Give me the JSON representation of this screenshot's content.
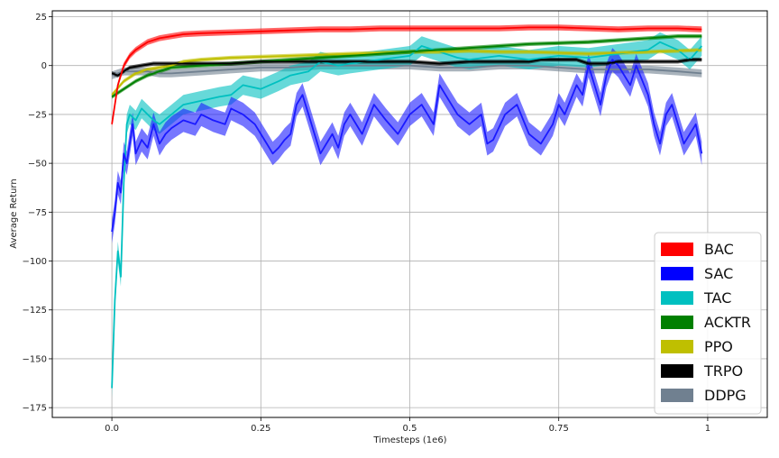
{
  "chart_data": {
    "type": "line",
    "title": "",
    "xlabel": "Timesteps (1e6)",
    "ylabel": "Average Return",
    "xlim": [
      -0.1,
      1.1
    ],
    "ylim": [
      -180,
      28
    ],
    "xticks": [
      0.0,
      0.25,
      0.5,
      0.75,
      1.0
    ],
    "xtick_labels": [
      "0.0",
      "0.25",
      "0.5",
      "0.75",
      "1"
    ],
    "yticks": [
      25,
      0,
      -25,
      -50,
      -75,
      -100,
      -125,
      -150,
      -175
    ],
    "ytick_labels": [
      "25",
      "0",
      "−25",
      "−50",
      "−75",
      "−100",
      "−125",
      "−150",
      "−175"
    ],
    "grid": true,
    "legend_position": "bottom-right",
    "series": [
      {
        "name": "DDPG",
        "color": "#708090",
        "x": [
          0.0,
          0.01,
          0.02,
          0.04,
          0.06,
          0.08,
          0.1,
          0.15,
          0.2,
          0.25,
          0.3,
          0.35,
          0.4,
          0.45,
          0.5,
          0.55,
          0.6,
          0.65,
          0.7,
          0.75,
          0.8,
          0.85,
          0.9,
          0.95,
          0.99
        ],
        "y": [
          -5,
          -4,
          -3,
          -3,
          -3,
          -4,
          -4,
          -3,
          -2,
          -1,
          -1,
          0,
          0,
          0,
          0,
          -1,
          -1,
          0,
          0,
          -1,
          -2,
          -2,
          -2,
          -3,
          -4
        ],
        "band": 2
      },
      {
        "name": "TAC",
        "color": "#00c0c0",
        "x": [
          0.0,
          0.005,
          0.01,
          0.015,
          0.02,
          0.025,
          0.03,
          0.04,
          0.05,
          0.06,
          0.07,
          0.08,
          0.1,
          0.12,
          0.15,
          0.18,
          0.2,
          0.22,
          0.25,
          0.28,
          0.3,
          0.33,
          0.35,
          0.38,
          0.4,
          0.45,
          0.5,
          0.52,
          0.55,
          0.58,
          0.6,
          0.65,
          0.7,
          0.75,
          0.8,
          0.85,
          0.9,
          0.92,
          0.95,
          0.97,
          0.99
        ],
        "y": [
          -165,
          -120,
          -95,
          -108,
          -60,
          -30,
          -25,
          -28,
          -22,
          -25,
          -28,
          -30,
          -25,
          -20,
          -18,
          -16,
          -15,
          -10,
          -12,
          -8,
          -5,
          -3,
          2,
          0,
          1,
          3,
          5,
          10,
          7,
          4,
          3,
          5,
          3,
          5,
          4,
          6,
          8,
          12,
          8,
          3,
          10
        ],
        "band": 5
      },
      {
        "name": "SAC",
        "color": "#1a1aff",
        "x": [
          0.0,
          0.005,
          0.01,
          0.015,
          0.02,
          0.025,
          0.03,
          0.035,
          0.04,
          0.05,
          0.06,
          0.07,
          0.08,
          0.09,
          0.1,
          0.12,
          0.14,
          0.15,
          0.17,
          0.19,
          0.2,
          0.22,
          0.24,
          0.25,
          0.26,
          0.27,
          0.28,
          0.29,
          0.3,
          0.31,
          0.32,
          0.33,
          0.34,
          0.35,
          0.36,
          0.37,
          0.38,
          0.39,
          0.4,
          0.42,
          0.44,
          0.46,
          0.48,
          0.5,
          0.52,
          0.54,
          0.55,
          0.56,
          0.58,
          0.6,
          0.62,
          0.63,
          0.64,
          0.66,
          0.68,
          0.7,
          0.72,
          0.74,
          0.75,
          0.76,
          0.78,
          0.79,
          0.8,
          0.81,
          0.82,
          0.83,
          0.84,
          0.85,
          0.86,
          0.87,
          0.88,
          0.9,
          0.91,
          0.92,
          0.93,
          0.94,
          0.95,
          0.96,
          0.97,
          0.98,
          0.99
        ],
        "y": [
          -85,
          -75,
          -60,
          -65,
          -45,
          -50,
          -40,
          -30,
          -45,
          -38,
          -42,
          -30,
          -40,
          -35,
          -32,
          -28,
          -30,
          -25,
          -28,
          -30,
          -22,
          -25,
          -30,
          -35,
          -40,
          -45,
          -42,
          -38,
          -35,
          -20,
          -15,
          -25,
          -35,
          -45,
          -40,
          -35,
          -42,
          -30,
          -25,
          -35,
          -20,
          -28,
          -35,
          -25,
          -20,
          -30,
          -10,
          -15,
          -25,
          -30,
          -25,
          -40,
          -38,
          -25,
          -20,
          -35,
          -40,
          -30,
          -20,
          -25,
          -10,
          -15,
          0,
          -10,
          -20,
          -5,
          3,
          0,
          -5,
          -10,
          0,
          -15,
          -30,
          -40,
          -25,
          -20,
          -30,
          -40,
          -35,
          -30,
          -45
        ],
        "band": 6
      },
      {
        "name": "PPO",
        "color": "#bfbf00",
        "x": [
          0.0,
          0.02,
          0.04,
          0.06,
          0.08,
          0.1,
          0.12,
          0.15,
          0.2,
          0.25,
          0.3,
          0.35,
          0.4,
          0.45,
          0.5,
          0.55,
          0.6,
          0.65,
          0.7,
          0.75,
          0.8,
          0.85,
          0.9,
          0.95,
          0.99
        ],
        "y": [
          -15,
          -8,
          -4,
          -2,
          -1,
          0,
          2,
          3,
          4,
          4.5,
          5,
          5.5,
          6,
          6.5,
          7,
          7,
          7.5,
          7,
          7,
          6.5,
          6,
          6.5,
          7,
          7.5,
          8
        ],
        "band": 1
      },
      {
        "name": "ACKTR",
        "color": "#008000",
        "x": [
          0.0,
          0.02,
          0.04,
          0.06,
          0.08,
          0.1,
          0.15,
          0.2,
          0.25,
          0.3,
          0.35,
          0.4,
          0.45,
          0.5,
          0.55,
          0.6,
          0.65,
          0.7,
          0.75,
          0.8,
          0.85,
          0.9,
          0.95,
          0.99
        ],
        "y": [
          -16,
          -12,
          -8,
          -5,
          -3,
          -1,
          0,
          1,
          2,
          3,
          4,
          5,
          6,
          7,
          8,
          9,
          10,
          11,
          11.5,
          12,
          13,
          14,
          15,
          15
        ],
        "band": 1
      },
      {
        "name": "TRPO",
        "color": "#000000",
        "x": [
          0.0,
          0.01,
          0.02,
          0.03,
          0.05,
          0.07,
          0.1,
          0.15,
          0.2,
          0.25,
          0.3,
          0.35,
          0.4,
          0.45,
          0.5,
          0.55,
          0.6,
          0.65,
          0.7,
          0.72,
          0.75,
          0.78,
          0.8,
          0.83,
          0.85,
          0.88,
          0.9,
          0.93,
          0.95,
          0.97,
          0.99
        ],
        "y": [
          -4,
          -5,
          -3,
          -1,
          0,
          1,
          1,
          1,
          1,
          2,
          2,
          2,
          2,
          2,
          2,
          1,
          2,
          2,
          2,
          3,
          3,
          3,
          1,
          1,
          2,
          2,
          2,
          2,
          2,
          3,
          3
        ],
        "band": 1
      },
      {
        "name": "BAC",
        "color": "#ff0000",
        "x": [
          0.0,
          0.005,
          0.01,
          0.02,
          0.03,
          0.04,
          0.05,
          0.06,
          0.08,
          0.1,
          0.12,
          0.15,
          0.2,
          0.25,
          0.3,
          0.35,
          0.4,
          0.45,
          0.5,
          0.55,
          0.6,
          0.65,
          0.7,
          0.75,
          0.8,
          0.85,
          0.9,
          0.95,
          0.99
        ],
        "y": [
          -30,
          -20,
          -10,
          0,
          5,
          8,
          10,
          12,
          14,
          15,
          16,
          16.5,
          17,
          17.5,
          18,
          18.5,
          18.5,
          19,
          19,
          19,
          19,
          19,
          19.5,
          19.5,
          19,
          18.5,
          19,
          19,
          18.5
        ],
        "band": 1.5
      }
    ],
    "legend": [
      {
        "label": "BAC",
        "color": "#ff0000"
      },
      {
        "label": "SAC",
        "color": "#0000ff"
      },
      {
        "label": "TAC",
        "color": "#00c0c0"
      },
      {
        "label": "ACKTR",
        "color": "#008000"
      },
      {
        "label": "PPO",
        "color": "#bfbf00"
      },
      {
        "label": "TRPO",
        "color": "#000000"
      },
      {
        "label": "DDPG",
        "color": "#708090"
      }
    ]
  }
}
